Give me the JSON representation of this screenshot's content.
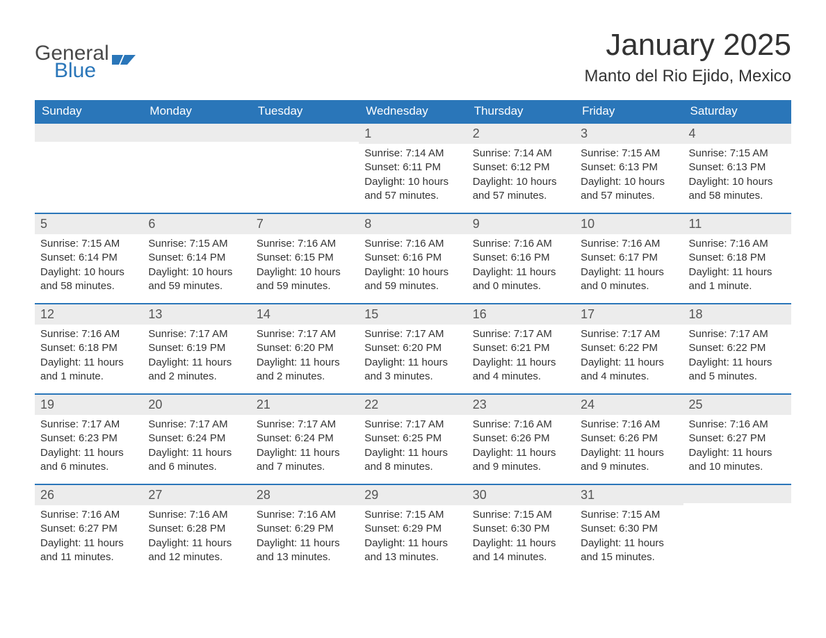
{
  "logo": {
    "general": "General",
    "blue": "Blue"
  },
  "header": {
    "title": "January 2025",
    "location": "Manto del Rio Ejido, Mexico"
  },
  "colors": {
    "header_bg": "#2a76b9",
    "header_text": "#ffffff",
    "daynum_bg": "#ececec",
    "day_divider": "#2a76b9",
    "body_text": "#333333",
    "page_bg": "#ffffff"
  },
  "days_of_week": [
    "Sunday",
    "Monday",
    "Tuesday",
    "Wednesday",
    "Thursday",
    "Friday",
    "Saturday"
  ],
  "weeks": [
    [
      null,
      null,
      null,
      {
        "n": "1",
        "sunrise": "7:14 AM",
        "sunset": "6:11 PM",
        "daylight": "10 hours and 57 minutes."
      },
      {
        "n": "2",
        "sunrise": "7:14 AM",
        "sunset": "6:12 PM",
        "daylight": "10 hours and 57 minutes."
      },
      {
        "n": "3",
        "sunrise": "7:15 AM",
        "sunset": "6:13 PM",
        "daylight": "10 hours and 57 minutes."
      },
      {
        "n": "4",
        "sunrise": "7:15 AM",
        "sunset": "6:13 PM",
        "daylight": "10 hours and 58 minutes."
      }
    ],
    [
      {
        "n": "5",
        "sunrise": "7:15 AM",
        "sunset": "6:14 PM",
        "daylight": "10 hours and 58 minutes."
      },
      {
        "n": "6",
        "sunrise": "7:15 AM",
        "sunset": "6:14 PM",
        "daylight": "10 hours and 59 minutes."
      },
      {
        "n": "7",
        "sunrise": "7:16 AM",
        "sunset": "6:15 PM",
        "daylight": "10 hours and 59 minutes."
      },
      {
        "n": "8",
        "sunrise": "7:16 AM",
        "sunset": "6:16 PM",
        "daylight": "10 hours and 59 minutes."
      },
      {
        "n": "9",
        "sunrise": "7:16 AM",
        "sunset": "6:16 PM",
        "daylight": "11 hours and 0 minutes."
      },
      {
        "n": "10",
        "sunrise": "7:16 AM",
        "sunset": "6:17 PM",
        "daylight": "11 hours and 0 minutes."
      },
      {
        "n": "11",
        "sunrise": "7:16 AM",
        "sunset": "6:18 PM",
        "daylight": "11 hours and 1 minute."
      }
    ],
    [
      {
        "n": "12",
        "sunrise": "7:16 AM",
        "sunset": "6:18 PM",
        "daylight": "11 hours and 1 minute."
      },
      {
        "n": "13",
        "sunrise": "7:17 AM",
        "sunset": "6:19 PM",
        "daylight": "11 hours and 2 minutes."
      },
      {
        "n": "14",
        "sunrise": "7:17 AM",
        "sunset": "6:20 PM",
        "daylight": "11 hours and 2 minutes."
      },
      {
        "n": "15",
        "sunrise": "7:17 AM",
        "sunset": "6:20 PM",
        "daylight": "11 hours and 3 minutes."
      },
      {
        "n": "16",
        "sunrise": "7:17 AM",
        "sunset": "6:21 PM",
        "daylight": "11 hours and 4 minutes."
      },
      {
        "n": "17",
        "sunrise": "7:17 AM",
        "sunset": "6:22 PM",
        "daylight": "11 hours and 4 minutes."
      },
      {
        "n": "18",
        "sunrise": "7:17 AM",
        "sunset": "6:22 PM",
        "daylight": "11 hours and 5 minutes."
      }
    ],
    [
      {
        "n": "19",
        "sunrise": "7:17 AM",
        "sunset": "6:23 PM",
        "daylight": "11 hours and 6 minutes."
      },
      {
        "n": "20",
        "sunrise": "7:17 AM",
        "sunset": "6:24 PM",
        "daylight": "11 hours and 6 minutes."
      },
      {
        "n": "21",
        "sunrise": "7:17 AM",
        "sunset": "6:24 PM",
        "daylight": "11 hours and 7 minutes."
      },
      {
        "n": "22",
        "sunrise": "7:17 AM",
        "sunset": "6:25 PM",
        "daylight": "11 hours and 8 minutes."
      },
      {
        "n": "23",
        "sunrise": "7:16 AM",
        "sunset": "6:26 PM",
        "daylight": "11 hours and 9 minutes."
      },
      {
        "n": "24",
        "sunrise": "7:16 AM",
        "sunset": "6:26 PM",
        "daylight": "11 hours and 9 minutes."
      },
      {
        "n": "25",
        "sunrise": "7:16 AM",
        "sunset": "6:27 PM",
        "daylight": "11 hours and 10 minutes."
      }
    ],
    [
      {
        "n": "26",
        "sunrise": "7:16 AM",
        "sunset": "6:27 PM",
        "daylight": "11 hours and 11 minutes."
      },
      {
        "n": "27",
        "sunrise": "7:16 AM",
        "sunset": "6:28 PM",
        "daylight": "11 hours and 12 minutes."
      },
      {
        "n": "28",
        "sunrise": "7:16 AM",
        "sunset": "6:29 PM",
        "daylight": "11 hours and 13 minutes."
      },
      {
        "n": "29",
        "sunrise": "7:15 AM",
        "sunset": "6:29 PM",
        "daylight": "11 hours and 13 minutes."
      },
      {
        "n": "30",
        "sunrise": "7:15 AM",
        "sunset": "6:30 PM",
        "daylight": "11 hours and 14 minutes."
      },
      {
        "n": "31",
        "sunrise": "7:15 AM",
        "sunset": "6:30 PM",
        "daylight": "11 hours and 15 minutes."
      },
      null
    ]
  ],
  "labels": {
    "sunrise": "Sunrise: ",
    "sunset": "Sunset: ",
    "daylight": "Daylight: "
  }
}
